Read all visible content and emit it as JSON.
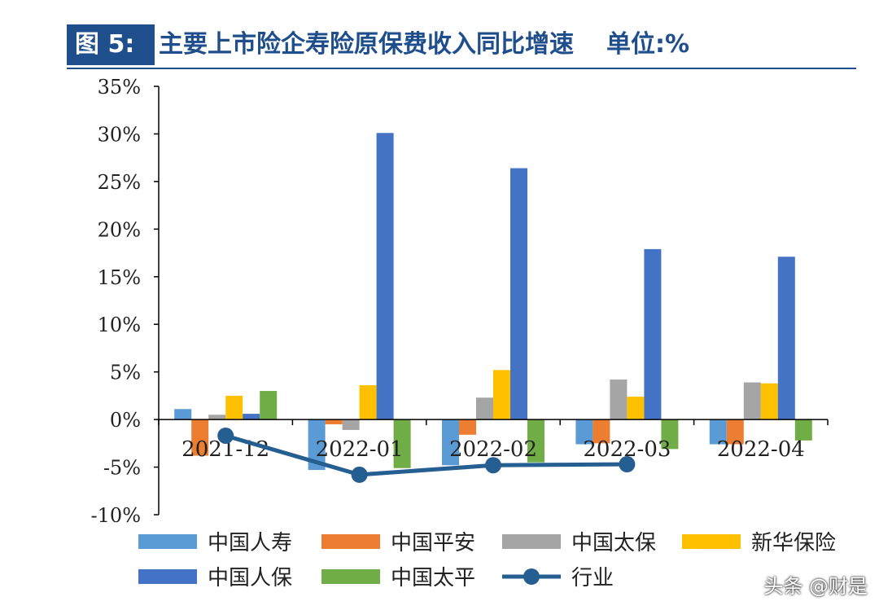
{
  "header": {
    "figure_tag": "图 5:",
    "title": "主要上市险企寿险原保费收入同比增速",
    "unit": "单位:%"
  },
  "watermark": "头条 @财是",
  "chart_data": {
    "type": "bar",
    "categories": [
      "2021-12",
      "2022-01",
      "2022-02",
      "2022-03",
      "2022-04"
    ],
    "ylim": [
      -10,
      35
    ],
    "yticks": [
      -10,
      -5,
      0,
      5,
      10,
      15,
      20,
      25,
      30,
      35
    ],
    "ytick_labels": [
      "-10%",
      "-5%",
      "0%",
      "5%",
      "10%",
      "15%",
      "20%",
      "25%",
      "30%",
      "35%"
    ],
    "series": [
      {
        "name": "中国人寿",
        "color": "#5b9bd5",
        "values": [
          1.1,
          -5.3,
          -4.8,
          -2.6,
          -2.6
        ]
      },
      {
        "name": "中国平安",
        "color": "#ed7d31",
        "values": [
          -3.8,
          -0.5,
          -1.6,
          -2.5,
          -2.6
        ]
      },
      {
        "name": "中国太保",
        "color": "#a5a5a5",
        "values": [
          0.5,
          -1.1,
          2.3,
          4.2,
          3.9
        ]
      },
      {
        "name": "新华保险",
        "color": "#ffc000",
        "values": [
          2.5,
          3.6,
          5.2,
          2.4,
          3.8
        ]
      },
      {
        "name": "中国人保",
        "color": "#4472c4",
        "values": [
          0.6,
          30.1,
          26.4,
          17.9,
          17.1
        ]
      },
      {
        "name": "中国太平",
        "color": "#70ad47",
        "values": [
          3.0,
          -5.1,
          -4.5,
          -3.1,
          -2.2
        ]
      }
    ],
    "line_series": {
      "name": "行业",
      "color": "#255e91",
      "values": [
        -1.7,
        -5.8,
        -4.8,
        -4.7,
        null
      ]
    },
    "legend_position": "bottom",
    "grid": false
  }
}
